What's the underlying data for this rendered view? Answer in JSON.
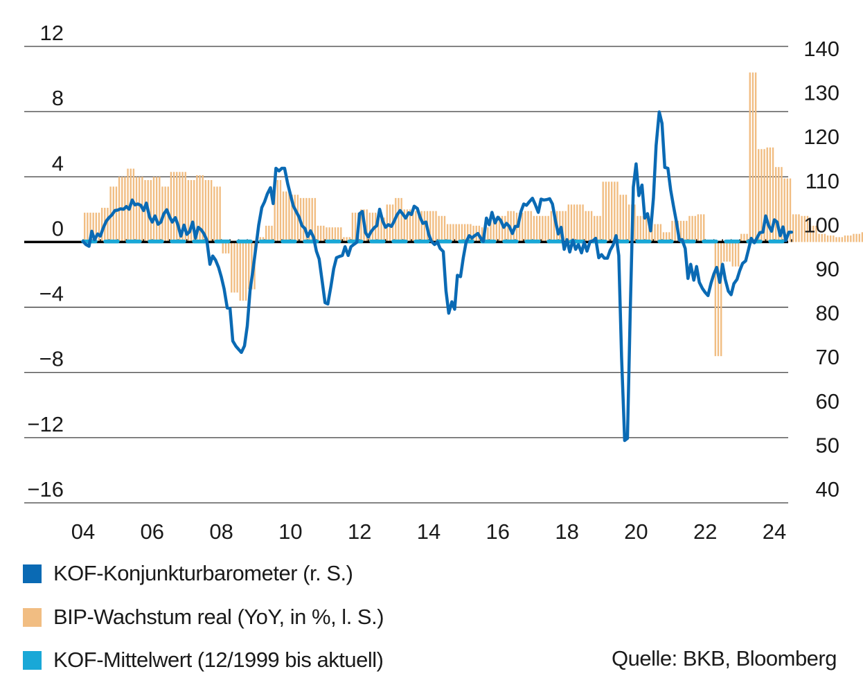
{
  "chart_data": {
    "type": "bar+line",
    "title": "",
    "xlabel": "",
    "ylabel_left": "BIP-Wachstum real (YoY, in %)",
    "ylabel_right": "KOF-Konjunkturbarometer",
    "x_tick_labels": [
      "04",
      "06",
      "08",
      "10",
      "12",
      "14",
      "16",
      "18",
      "20",
      "22",
      "24"
    ],
    "x_ticks_year": [
      2004,
      2006,
      2008,
      2010,
      2012,
      2014,
      2016,
      2018,
      2020,
      2022,
      2024
    ],
    "xlim": [
      2004.0,
      2024.5
    ],
    "y_left": {
      "ticks": [
        12,
        8,
        4,
        0,
        -4,
        -8,
        -12,
        -16
      ],
      "tick_labels": [
        "12",
        "8",
        "4",
        "0",
        "−4",
        "−8",
        "−12",
        "−16"
      ],
      "ylim": [
        -16,
        12
      ]
    },
    "y_right": {
      "ticks": [
        140,
        130,
        120,
        110,
        100,
        90,
        80,
        70,
        60,
        50,
        40
      ],
      "tick_labels": [
        "140",
        "130",
        "120",
        "110",
        "100",
        "90",
        "80",
        "70",
        "60",
        "50",
        "40"
      ],
      "ylim": [
        40,
        140
      ]
    },
    "grid": true,
    "legend_placement": "bottom-left",
    "colors": {
      "kof": "#0a6ab4",
      "gdp": "#f1bd82",
      "mean": "#19a8d7",
      "grid": "#333333",
      "zero": "#000000"
    },
    "series": [
      {
        "name": "BIP-Wachstum real (YoY, in %, l. S.)",
        "type": "bar",
        "axis": "left",
        "frequency": "quarterly",
        "start": "2004Q1",
        "values": [
          1.8,
          1.8,
          2.1,
          3.4,
          4.0,
          4.5,
          4.0,
          3.8,
          4.0,
          3.4,
          4.3,
          4.3,
          3.8,
          4.1,
          3.8,
          3.4,
          -0.7,
          -3.1,
          -3.6,
          -2.9,
          0.3,
          1.0,
          3.8,
          3.1,
          2.9,
          2.7,
          2.7,
          1.0,
          0.9,
          0.9,
          0.3,
          1.8,
          2.0,
          1.8,
          1.5,
          2.3,
          2.7,
          2.0,
          1.9,
          1.9,
          1.9,
          1.6,
          1.1,
          1.1,
          1.1,
          1.0,
          0.9,
          1.5,
          1.6,
          1.9,
          1.8,
          1.9,
          1.6,
          1.6,
          1.9,
          1.9,
          2.3,
          2.3,
          1.9,
          1.6,
          3.7,
          3.7,
          2.9,
          2.3,
          1.6,
          1.6,
          1.1,
          0.6,
          1.3,
          1.3,
          1.6,
          1.7,
          0.0,
          -7.0,
          -1.2,
          -1.5,
          0.5,
          10.4,
          5.7,
          5.8,
          4.6,
          3.9,
          1.7,
          1.6,
          1.0,
          0.5,
          0.4,
          0.3,
          0.4,
          0.5,
          0.6,
          1.6,
          1.6,
          1.6
        ]
      },
      {
        "name": "KOF-Konjunkturbarometer (r. S.)",
        "type": "line",
        "axis": "right",
        "points": [
          [
            2004.0,
            96.2
          ],
          [
            2004.08,
            95.5
          ],
          [
            2004.17,
            95.1
          ],
          [
            2004.25,
            98.5
          ],
          [
            2004.33,
            96.6
          ],
          [
            2004.42,
            97.9
          ],
          [
            2004.5,
            97.4
          ],
          [
            2004.58,
            99.2
          ],
          [
            2004.67,
            100.8
          ],
          [
            2004.75,
            101.6
          ],
          [
            2004.83,
            102.2
          ],
          [
            2004.92,
            103.2
          ],
          [
            2005.0,
            103.3
          ],
          [
            2005.08,
            103.6
          ],
          [
            2005.17,
            103.5
          ],
          [
            2005.25,
            104.1
          ],
          [
            2005.33,
            103.5
          ],
          [
            2005.42,
            105.6
          ],
          [
            2005.5,
            104.5
          ],
          [
            2005.58,
            104.7
          ],
          [
            2005.67,
            104.4
          ],
          [
            2005.75,
            103.2
          ],
          [
            2005.83,
            104.9
          ],
          [
            2005.92,
            101.8
          ],
          [
            2006.0,
            100.6
          ],
          [
            2006.08,
            102.0
          ],
          [
            2006.17,
            100.1
          ],
          [
            2006.25,
            100.6
          ],
          [
            2006.33,
            102.4
          ],
          [
            2006.42,
            103.4
          ],
          [
            2006.5,
            101.8
          ],
          [
            2006.58,
            100.6
          ],
          [
            2006.67,
            101.6
          ],
          [
            2006.75,
            99.8
          ],
          [
            2006.83,
            97.4
          ],
          [
            2006.92,
            99.9
          ],
          [
            2007.0,
            97.8
          ],
          [
            2007.08,
            98.4
          ],
          [
            2007.17,
            100.6
          ],
          [
            2007.25,
            97.0
          ],
          [
            2007.33,
            99.4
          ],
          [
            2007.42,
            98.8
          ],
          [
            2007.5,
            97.9
          ],
          [
            2007.58,
            96.5
          ],
          [
            2007.67,
            91.0
          ],
          [
            2007.75,
            92.9
          ],
          [
            2007.83,
            92.0
          ],
          [
            2007.92,
            90.3
          ],
          [
            2008.0,
            88.1
          ],
          [
            2008.08,
            85.4
          ],
          [
            2008.17,
            81.1
          ],
          [
            2008.25,
            81.0
          ],
          [
            2008.33,
            73.6
          ],
          [
            2008.42,
            72.4
          ],
          [
            2008.5,
            71.7
          ],
          [
            2008.58,
            71.0
          ],
          [
            2008.67,
            72.5
          ],
          [
            2008.75,
            77.0
          ],
          [
            2008.83,
            85.0
          ],
          [
            2008.92,
            90.0
          ],
          [
            2009.0,
            94.9
          ],
          [
            2009.08,
            99.9
          ],
          [
            2009.17,
            103.9
          ],
          [
            2009.25,
            105.2
          ],
          [
            2009.33,
            107.0
          ],
          [
            2009.42,
            108.4
          ],
          [
            2009.5,
            104.8
          ],
          [
            2009.58,
            112.8
          ],
          [
            2009.67,
            112.2
          ],
          [
            2009.75,
            112.8
          ],
          [
            2009.83,
            112.8
          ],
          [
            2009.92,
            109.3
          ],
          [
            2010.0,
            106.8
          ],
          [
            2010.08,
            104.3
          ],
          [
            2010.17,
            102.9
          ],
          [
            2010.25,
            101.7
          ],
          [
            2010.33,
            99.8
          ],
          [
            2010.42,
            99.1
          ],
          [
            2010.5,
            97.3
          ],
          [
            2010.58,
            98.6
          ],
          [
            2010.67,
            97.1
          ],
          [
            2010.75,
            94.0
          ],
          [
            2010.83,
            92.2
          ],
          [
            2010.92,
            87.0
          ],
          [
            2011.0,
            82.3
          ],
          [
            2011.08,
            82.0
          ],
          [
            2011.17,
            86.0
          ],
          [
            2011.25,
            90.0
          ],
          [
            2011.33,
            92.5
          ],
          [
            2011.42,
            92.8
          ],
          [
            2011.5,
            93.0
          ],
          [
            2011.58,
            95.0
          ],
          [
            2011.67,
            93.0
          ],
          [
            2011.75,
            95.0
          ],
          [
            2011.83,
            95.5
          ],
          [
            2011.92,
            96.0
          ],
          [
            2012.0,
            102.5
          ],
          [
            2012.08,
            103.0
          ],
          [
            2012.17,
            98.2
          ],
          [
            2012.25,
            97.2
          ],
          [
            2012.33,
            98.4
          ],
          [
            2012.42,
            99.3
          ],
          [
            2012.5,
            99.8
          ],
          [
            2012.58,
            103.5
          ],
          [
            2012.67,
            100.8
          ],
          [
            2012.75,
            99.4
          ],
          [
            2012.83,
            100.0
          ],
          [
            2012.92,
            99.6
          ],
          [
            2013.0,
            100.8
          ],
          [
            2013.08,
            102.2
          ],
          [
            2013.17,
            103.2
          ],
          [
            2013.25,
            102.4
          ],
          [
            2013.33,
            101.5
          ],
          [
            2013.42,
            102.7
          ],
          [
            2013.5,
            102.3
          ],
          [
            2013.58,
            104.2
          ],
          [
            2013.67,
            103.7
          ],
          [
            2013.75,
            101.7
          ],
          [
            2013.83,
            100.3
          ],
          [
            2013.92,
            100.6
          ],
          [
            2014.0,
            97.8
          ],
          [
            2014.08,
            96.2
          ],
          [
            2014.17,
            95.5
          ],
          [
            2014.25,
            96.1
          ],
          [
            2014.33,
            94.6
          ],
          [
            2014.42,
            93.9
          ],
          [
            2014.5,
            85.0
          ],
          [
            2014.58,
            79.9
          ],
          [
            2014.67,
            82.5
          ],
          [
            2014.75,
            80.8
          ],
          [
            2014.83,
            88.5
          ],
          [
            2014.92,
            88.2
          ],
          [
            2015.0,
            92.5
          ],
          [
            2015.08,
            96.0
          ],
          [
            2015.17,
            97.5
          ],
          [
            2015.25,
            97.0
          ],
          [
            2015.33,
            97.5
          ],
          [
            2015.42,
            98.0
          ],
          [
            2015.5,
            97.0
          ],
          [
            2015.58,
            96.2
          ],
          [
            2015.67,
            101.5
          ],
          [
            2015.75,
            100.0
          ],
          [
            2015.83,
            102.8
          ],
          [
            2015.92,
            100.4
          ],
          [
            2016.0,
            101.7
          ],
          [
            2016.08,
            101.0
          ],
          [
            2016.17,
            99.4
          ],
          [
            2016.25,
            100.3
          ],
          [
            2016.33,
            99.6
          ],
          [
            2016.42,
            98.0
          ],
          [
            2016.5,
            99.6
          ],
          [
            2016.58,
            99.6
          ],
          [
            2016.67,
            103.0
          ],
          [
            2016.75,
            104.7
          ],
          [
            2016.83,
            104.4
          ],
          [
            2016.92,
            105.3
          ],
          [
            2017.0,
            106.0
          ],
          [
            2017.08,
            104.6
          ],
          [
            2017.17,
            102.8
          ],
          [
            2017.25,
            105.8
          ],
          [
            2017.33,
            105.6
          ],
          [
            2017.42,
            105.7
          ],
          [
            2017.5,
            105.9
          ],
          [
            2017.58,
            104.7
          ],
          [
            2017.67,
            100.8
          ],
          [
            2017.75,
            97.9
          ],
          [
            2017.83,
            99.4
          ],
          [
            2017.92,
            94.4
          ],
          [
            2018.0,
            96.6
          ],
          [
            2018.08,
            93.8
          ],
          [
            2018.17,
            96.5
          ],
          [
            2018.25,
            94.4
          ],
          [
            2018.33,
            95.5
          ],
          [
            2018.42,
            93.6
          ],
          [
            2018.5,
            96.0
          ],
          [
            2018.58,
            94.0
          ],
          [
            2018.67,
            96.2
          ],
          [
            2018.75,
            96.3
          ],
          [
            2018.83,
            96.9
          ],
          [
            2018.92,
            92.5
          ],
          [
            2019.0,
            93.2
          ],
          [
            2019.08,
            92.4
          ],
          [
            2019.17,
            92.4
          ],
          [
            2019.25,
            94.2
          ],
          [
            2019.33,
            95.3
          ],
          [
            2019.42,
            97.5
          ],
          [
            2019.5,
            93.0
          ],
          [
            2019.58,
            70.0
          ],
          [
            2019.67,
            51.0
          ],
          [
            2019.75,
            51.5
          ],
          [
            2019.83,
            80.0
          ],
          [
            2019.92,
            108.5
          ],
          [
            2020.0,
            113.8
          ],
          [
            2020.08,
            106.6
          ],
          [
            2020.17,
            109.0
          ],
          [
            2020.25,
            101.5
          ],
          [
            2020.33,
            102.5
          ],
          [
            2020.42,
            98.6
          ],
          [
            2020.5,
            106.0
          ],
          [
            2020.58,
            118.0
          ],
          [
            2020.67,
            125.6
          ],
          [
            2020.75,
            123.0
          ],
          [
            2020.83,
            113.0
          ],
          [
            2020.92,
            112.8
          ],
          [
            2021.0,
            107.9
          ],
          [
            2021.08,
            104.3
          ],
          [
            2021.17,
            100.5
          ],
          [
            2021.25,
            96.5
          ],
          [
            2021.33,
            96.6
          ],
          [
            2021.42,
            94.6
          ],
          [
            2021.5,
            87.8
          ],
          [
            2021.58,
            91.0
          ],
          [
            2021.67,
            87.4
          ],
          [
            2021.75,
            90.5
          ],
          [
            2021.83,
            86.9
          ],
          [
            2021.92,
            85.5
          ],
          [
            2022.0,
            84.6
          ],
          [
            2022.08,
            83.9
          ],
          [
            2022.17,
            86.8
          ],
          [
            2022.25,
            88.8
          ],
          [
            2022.33,
            90.3
          ],
          [
            2022.42,
            86.9
          ],
          [
            2022.5,
            91.0
          ],
          [
            2022.58,
            87.6
          ],
          [
            2022.67,
            84.9
          ],
          [
            2022.75,
            84.1
          ],
          [
            2022.83,
            86.6
          ],
          [
            2022.92,
            87.6
          ],
          [
            2023.0,
            89.6
          ],
          [
            2023.08,
            91.2
          ],
          [
            2023.17,
            91.8
          ],
          [
            2023.25,
            94.3
          ],
          [
            2023.33,
            96.9
          ],
          [
            2023.42,
            95.9
          ],
          [
            2023.5,
            97.0
          ],
          [
            2023.58,
            98.2
          ],
          [
            2023.67,
            98.3
          ],
          [
            2023.75,
            102.0
          ],
          [
            2023.83,
            99.9
          ],
          [
            2023.92,
            98.5
          ],
          [
            2024.0,
            101.1
          ],
          [
            2024.08,
            100.6
          ],
          [
            2024.17,
            97.5
          ],
          [
            2024.25,
            99.5
          ],
          [
            2024.33,
            96.4
          ],
          [
            2024.42,
            98.3
          ],
          [
            2024.5,
            98.3
          ]
        ]
      },
      {
        "name": "KOF-Mittelwert (12/1999 bis aktuell)",
        "type": "line-dashed",
        "axis": "right",
        "value": 96.2
      }
    ]
  },
  "legend": [
    {
      "label": "KOF-Konjunkturbarometer (r. S.)",
      "color": "#0a6ab4"
    },
    {
      "label": "BIP-Wachstum real (YoY, in %, l. S.)",
      "color": "#f1bd82"
    },
    {
      "label": "KOF-Mittelwert (12/1999 bis aktuell)",
      "color": "#19a8d7"
    }
  ],
  "source": "Quelle: BKB, Bloomberg"
}
